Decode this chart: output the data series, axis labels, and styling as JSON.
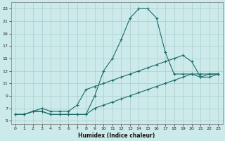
{
  "xlabel": "Humidex (Indice chaleur)",
  "bg_color": "#cdeaea",
  "grid_color": "#aacccc",
  "line_color": "#1a6b6b",
  "xlim": [
    -0.5,
    23.5
  ],
  "ylim": [
    4.5,
    24
  ],
  "xticks": [
    0,
    1,
    2,
    3,
    4,
    5,
    6,
    7,
    8,
    9,
    10,
    11,
    12,
    13,
    14,
    15,
    16,
    17,
    18,
    19,
    20,
    21,
    22,
    23
  ],
  "yticks": [
    5,
    7,
    9,
    11,
    13,
    15,
    17,
    19,
    21,
    23
  ],
  "series": [
    {
      "x": [
        0,
        1,
        2,
        3,
        4,
        5,
        6,
        7,
        8,
        9,
        10,
        11,
        12,
        13,
        14,
        15,
        16,
        17,
        18,
        19,
        20,
        21,
        22,
        23
      ],
      "y": [
        6,
        6,
        6.5,
        6.5,
        6,
        6,
        6,
        6,
        6,
        9,
        13,
        15,
        18,
        21.5,
        23,
        23,
        21.5,
        16,
        12.5,
        12.5,
        12.5,
        12.5,
        12.5,
        12.5
      ]
    },
    {
      "x": [
        0,
        1,
        2,
        3,
        4,
        5,
        6,
        7,
        8,
        9,
        10,
        11,
        12,
        13,
        14,
        15,
        16,
        17,
        18,
        19,
        20,
        21,
        22,
        23
      ],
      "y": [
        6,
        6,
        6.5,
        7,
        6.5,
        6.5,
        6.5,
        7.5,
        10,
        10.5,
        11,
        11.5,
        12,
        12.5,
        13,
        13.5,
        14,
        14.5,
        15,
        15.5,
        14.5,
        12,
        12.5,
        12.5
      ]
    },
    {
      "x": [
        0,
        1,
        2,
        3,
        4,
        5,
        6,
        7,
        8,
        9,
        10,
        11,
        12,
        13,
        14,
        15,
        16,
        17,
        18,
        19,
        20,
        21,
        22,
        23
      ],
      "y": [
        6,
        6,
        6.5,
        6.5,
        6,
        6,
        6,
        6,
        6,
        7,
        7.5,
        8,
        8.5,
        9,
        9.5,
        10,
        10.5,
        11,
        11.5,
        12,
        12.5,
        12,
        12,
        12.5
      ]
    }
  ]
}
